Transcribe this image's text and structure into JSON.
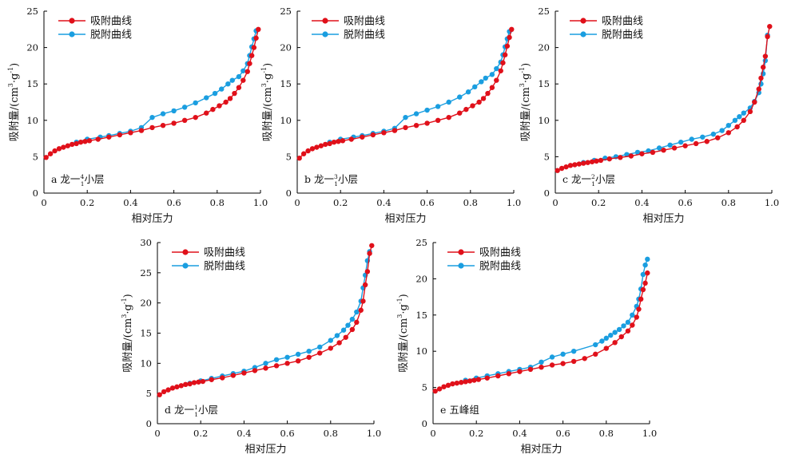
{
  "figure": {
    "colors": {
      "adsorption": "#e0101a",
      "desorption": "#1a9ee0",
      "axis": "#000000"
    }
  },
  "chart_data": [
    {
      "type": "line",
      "panel_label": "a 龙一1⁴小层",
      "panel_label_parts": {
        "prefix": "a 龙一",
        "sup": "4",
        "sub": "1",
        "suffix": "小层"
      },
      "xlabel": "相对压力",
      "ylabel": "吸附量/(cm³·g⁻¹)",
      "ylabel_parts": [
        "吸附量/(cm",
        "3",
        "·g",
        "-1",
        ")"
      ],
      "xlim": [
        0,
        1.0
      ],
      "ylim": [
        0,
        25
      ],
      "xticks": [
        0,
        0.2,
        0.4,
        0.6,
        0.8,
        1.0
      ],
      "xtick_labels": [
        "0",
        "0.2",
        "0.4",
        "0.6",
        "0.8",
        "1.0"
      ],
      "yticks": [
        0,
        5,
        10,
        15,
        20,
        25
      ],
      "ytick_labels": [
        "0",
        "5",
        "10",
        "15",
        "20",
        "25"
      ],
      "legend_position": "top-left",
      "series": [
        {
          "name": "吸附曲线",
          "color": "#e0101a",
          "marker": "circle",
          "x": [
            0.01,
            0.03,
            0.05,
            0.07,
            0.09,
            0.11,
            0.13,
            0.15,
            0.17,
            0.19,
            0.21,
            0.25,
            0.3,
            0.35,
            0.4,
            0.45,
            0.5,
            0.55,
            0.6,
            0.65,
            0.7,
            0.75,
            0.78,
            0.81,
            0.84,
            0.86,
            0.88,
            0.9,
            0.92,
            0.94,
            0.95,
            0.96,
            0.97,
            0.98,
            0.99
          ],
          "y": [
            4.9,
            5.4,
            5.8,
            6.1,
            6.3,
            6.5,
            6.7,
            6.8,
            7.0,
            7.1,
            7.2,
            7.4,
            7.7,
            8.0,
            8.3,
            8.6,
            9.0,
            9.3,
            9.6,
            10.0,
            10.4,
            11.0,
            11.5,
            12.0,
            12.5,
            13.0,
            13.7,
            14.5,
            15.5,
            16.7,
            17.8,
            18.9,
            20.0,
            21.3,
            22.5
          ]
        },
        {
          "name": "脱附曲线",
          "color": "#1a9ee0",
          "marker": "circle",
          "x": [
            0.15,
            0.2,
            0.26,
            0.3,
            0.35,
            0.4,
            0.45,
            0.5,
            0.55,
            0.6,
            0.65,
            0.7,
            0.75,
            0.79,
            0.82,
            0.85,
            0.87,
            0.9,
            0.92,
            0.94,
            0.95,
            0.96,
            0.97,
            0.98
          ],
          "y": [
            7.0,
            7.4,
            7.7,
            7.9,
            8.2,
            8.5,
            9.0,
            10.4,
            10.9,
            11.3,
            11.8,
            12.4,
            13.1,
            13.7,
            14.3,
            15.0,
            15.5,
            16.0,
            16.8,
            17.8,
            18.9,
            20.1,
            21.2,
            22.3
          ]
        }
      ]
    },
    {
      "type": "line",
      "panel_label": "b 龙一1³小层",
      "panel_label_parts": {
        "prefix": "b 龙一",
        "sup": "3",
        "sub": "1",
        "suffix": "小层"
      },
      "xlabel": "相对压力",
      "ylabel": "吸附量/(cm³·g⁻¹)",
      "ylabel_parts": [
        "吸附量/(cm",
        "3",
        "·g",
        "-1",
        ")"
      ],
      "xlim": [
        0,
        1.0
      ],
      "ylim": [
        0,
        25
      ],
      "xticks": [
        0,
        0.2,
        0.4,
        0.6,
        0.8,
        1.0
      ],
      "xtick_labels": [
        "0",
        "0.2",
        "0.4",
        "0.6",
        "0.8",
        "1.0"
      ],
      "yticks": [
        0,
        5,
        10,
        15,
        20,
        25
      ],
      "ytick_labels": [
        "0",
        "5",
        "10",
        "15",
        "20",
        "25"
      ],
      "legend_position": "top-left",
      "series": [
        {
          "name": "吸附曲线",
          "color": "#e0101a",
          "marker": "circle",
          "x": [
            0.01,
            0.03,
            0.05,
            0.07,
            0.09,
            0.11,
            0.13,
            0.15,
            0.17,
            0.19,
            0.21,
            0.25,
            0.3,
            0.35,
            0.4,
            0.45,
            0.5,
            0.55,
            0.6,
            0.65,
            0.7,
            0.75,
            0.78,
            0.81,
            0.84,
            0.86,
            0.88,
            0.9,
            0.92,
            0.94,
            0.95,
            0.96,
            0.97,
            0.98,
            0.99
          ],
          "y": [
            4.8,
            5.4,
            5.8,
            6.1,
            6.3,
            6.5,
            6.7,
            6.8,
            7.0,
            7.1,
            7.2,
            7.4,
            7.7,
            8.0,
            8.3,
            8.6,
            9.0,
            9.3,
            9.6,
            10.0,
            10.4,
            11.0,
            11.5,
            12.0,
            12.5,
            13.0,
            13.7,
            14.5,
            15.5,
            16.8,
            17.9,
            19.0,
            20.2,
            21.4,
            22.5
          ]
        },
        {
          "name": "脱附曲线",
          "color": "#1a9ee0",
          "marker": "circle",
          "x": [
            0.15,
            0.2,
            0.26,
            0.3,
            0.35,
            0.4,
            0.45,
            0.5,
            0.55,
            0.6,
            0.65,
            0.7,
            0.75,
            0.79,
            0.82,
            0.85,
            0.87,
            0.9,
            0.92,
            0.94,
            0.95,
            0.96,
            0.97,
            0.98
          ],
          "y": [
            7.0,
            7.4,
            7.7,
            7.9,
            8.2,
            8.5,
            8.9,
            10.4,
            10.9,
            11.4,
            11.9,
            12.5,
            13.2,
            13.9,
            14.6,
            15.3,
            15.8,
            16.3,
            17.1,
            18.0,
            19.0,
            20.1,
            21.2,
            22.2
          ]
        }
      ]
    },
    {
      "type": "line",
      "panel_label": "c 龙一1²小层",
      "panel_label_parts": {
        "prefix": "c 龙一",
        "sup": "2",
        "sub": "1",
        "suffix": "小层"
      },
      "xlabel": "相对压力",
      "ylabel": "吸附量/(cm³·g⁻¹)",
      "ylabel_parts": [
        "吸附量/(cm",
        "3",
        "·g",
        "-1",
        ")"
      ],
      "xlim": [
        0,
        1.0
      ],
      "ylim": [
        0,
        25
      ],
      "xticks": [
        0,
        0.2,
        0.4,
        0.6,
        0.8,
        1.0
      ],
      "xtick_labels": [
        "0",
        "0.2",
        "0.4",
        "0.6",
        "0.8",
        "1.0"
      ],
      "yticks": [
        0,
        5,
        10,
        15,
        20,
        25
      ],
      "ytick_labels": [
        "0",
        "5",
        "10",
        "15",
        "20",
        "25"
      ],
      "legend_position": "top-left",
      "series": [
        {
          "name": "吸附曲线",
          "color": "#e0101a",
          "marker": "circle",
          "x": [
            0.01,
            0.03,
            0.05,
            0.07,
            0.09,
            0.11,
            0.13,
            0.15,
            0.17,
            0.19,
            0.21,
            0.25,
            0.3,
            0.35,
            0.4,
            0.45,
            0.5,
            0.55,
            0.6,
            0.65,
            0.7,
            0.75,
            0.8,
            0.84,
            0.87,
            0.9,
            0.92,
            0.94,
            0.95,
            0.96,
            0.97,
            0.98,
            0.99
          ],
          "y": [
            3.1,
            3.4,
            3.6,
            3.8,
            3.9,
            4.0,
            4.1,
            4.2,
            4.3,
            4.4,
            4.5,
            4.7,
            4.9,
            5.1,
            5.4,
            5.6,
            5.9,
            6.2,
            6.5,
            6.8,
            7.1,
            7.6,
            8.3,
            9.1,
            10.0,
            11.2,
            12.5,
            14.3,
            15.8,
            17.3,
            18.8,
            21.5,
            22.9
          ]
        },
        {
          "name": "脱附曲线",
          "color": "#1a9ee0",
          "marker": "circle",
          "x": [
            0.13,
            0.18,
            0.23,
            0.28,
            0.33,
            0.38,
            0.43,
            0.48,
            0.53,
            0.58,
            0.63,
            0.68,
            0.73,
            0.77,
            0.8,
            0.83,
            0.85,
            0.87,
            0.9,
            0.92,
            0.94,
            0.95,
            0.96,
            0.97,
            0.98
          ],
          "y": [
            4.2,
            4.5,
            4.8,
            5.0,
            5.3,
            5.6,
            5.8,
            6.2,
            6.6,
            7.0,
            7.4,
            7.7,
            8.1,
            8.6,
            9.3,
            10.0,
            10.5,
            11.0,
            11.7,
            12.6,
            13.8,
            15.0,
            16.4,
            18.2,
            21.7
          ]
        }
      ]
    },
    {
      "type": "line",
      "panel_label": "d 龙一1¹小层",
      "panel_label_parts": {
        "prefix": "d 龙一",
        "sup": "1",
        "sub": "1",
        "suffix": "小层"
      },
      "xlabel": "相对压力",
      "ylabel": "吸附量/(cm³·g⁻¹)",
      "ylabel_parts": [
        "吸附量/(cm",
        "3",
        "·g",
        "-1",
        ")"
      ],
      "xlim": [
        0,
        1.0
      ],
      "ylim": [
        0,
        30
      ],
      "xticks": [
        0,
        0.2,
        0.4,
        0.6,
        0.8,
        1.0
      ],
      "xtick_labels": [
        "0",
        "0.2",
        "0.4",
        "0.6",
        "0.8",
        "1.0"
      ],
      "yticks": [
        0,
        5,
        10,
        15,
        20,
        25,
        30
      ],
      "ytick_labels": [
        "0",
        "5",
        "10",
        "15",
        "20",
        "25",
        "30"
      ],
      "legend_position": "top-left",
      "series": [
        {
          "name": "吸附曲线",
          "color": "#e0101a",
          "marker": "circle",
          "x": [
            0.01,
            0.03,
            0.05,
            0.07,
            0.09,
            0.11,
            0.13,
            0.15,
            0.17,
            0.19,
            0.21,
            0.25,
            0.3,
            0.35,
            0.4,
            0.45,
            0.5,
            0.55,
            0.6,
            0.65,
            0.7,
            0.75,
            0.8,
            0.84,
            0.87,
            0.9,
            0.92,
            0.94,
            0.95,
            0.96,
            0.97,
            0.98,
            0.99
          ],
          "y": [
            4.8,
            5.3,
            5.6,
            5.9,
            6.1,
            6.3,
            6.5,
            6.6,
            6.8,
            6.9,
            7.0,
            7.3,
            7.6,
            8.0,
            8.4,
            8.8,
            9.2,
            9.6,
            10.0,
            10.4,
            11.0,
            11.7,
            12.5,
            13.4,
            14.3,
            15.6,
            16.8,
            18.8,
            20.3,
            23.0,
            25.2,
            28.2,
            29.5
          ]
        },
        {
          "name": "脱附曲线",
          "color": "#1a9ee0",
          "marker": "circle",
          "x": [
            0.15,
            0.2,
            0.25,
            0.3,
            0.35,
            0.4,
            0.45,
            0.5,
            0.55,
            0.6,
            0.65,
            0.7,
            0.75,
            0.8,
            0.83,
            0.86,
            0.88,
            0.9,
            0.92,
            0.94,
            0.95,
            0.96,
            0.97,
            0.98
          ],
          "y": [
            6.7,
            7.1,
            7.5,
            7.9,
            8.3,
            8.7,
            9.3,
            10.0,
            10.6,
            11.0,
            11.5,
            12.0,
            12.7,
            13.8,
            14.6,
            15.5,
            16.3,
            17.3,
            18.5,
            20.3,
            22.5,
            24.6,
            27.0,
            28.5
          ]
        }
      ]
    },
    {
      "type": "line",
      "panel_label": "e 五峰组",
      "panel_label_parts": {
        "prefix": "e 五峰组",
        "sup": "",
        "sub": "",
        "suffix": ""
      },
      "xlabel": "相对压力",
      "ylabel": "吸附量/(cm³·g⁻¹)",
      "ylabel_parts": [
        "吸附量/(cm",
        "3",
        "·g",
        "-1",
        ")"
      ],
      "xlim": [
        0,
        1.0
      ],
      "ylim": [
        0,
        25
      ],
      "xticks": [
        0,
        0.2,
        0.4,
        0.6,
        0.8,
        1.0
      ],
      "xtick_labels": [
        "0",
        "0.2",
        "0.4",
        "0.6",
        "0.8",
        "1.0"
      ],
      "yticks": [
        0,
        5,
        10,
        15,
        20,
        25
      ],
      "ytick_labels": [
        "0",
        "5",
        "10",
        "15",
        "20",
        "25"
      ],
      "legend_position": "top-left",
      "series": [
        {
          "name": "吸附曲线",
          "color": "#e0101a",
          "marker": "circle",
          "x": [
            0.01,
            0.03,
            0.05,
            0.07,
            0.09,
            0.11,
            0.13,
            0.15,
            0.17,
            0.19,
            0.21,
            0.25,
            0.3,
            0.35,
            0.4,
            0.45,
            0.5,
            0.55,
            0.6,
            0.65,
            0.7,
            0.75,
            0.8,
            0.84,
            0.87,
            0.9,
            0.92,
            0.94,
            0.95,
            0.96,
            0.97,
            0.98,
            0.99
          ],
          "y": [
            4.5,
            4.8,
            5.1,
            5.3,
            5.5,
            5.6,
            5.7,
            5.8,
            5.9,
            6.0,
            6.1,
            6.3,
            6.6,
            6.9,
            7.2,
            7.5,
            7.8,
            8.1,
            8.3,
            8.6,
            9.0,
            9.6,
            10.4,
            11.2,
            12.0,
            12.8,
            13.6,
            14.7,
            15.8,
            17.2,
            18.5,
            19.4,
            20.8
          ]
        },
        {
          "name": "脱附曲线",
          "color": "#1a9ee0",
          "marker": "circle",
          "x": [
            0.15,
            0.2,
            0.25,
            0.3,
            0.35,
            0.4,
            0.45,
            0.5,
            0.55,
            0.6,
            0.65,
            0.75,
            0.78,
            0.8,
            0.82,
            0.84,
            0.86,
            0.88,
            0.9,
            0.92,
            0.94,
            0.95,
            0.96,
            0.97,
            0.98,
            0.99
          ],
          "y": [
            6.0,
            6.3,
            6.6,
            6.9,
            7.2,
            7.5,
            7.8,
            8.5,
            9.2,
            9.6,
            10.0,
            10.9,
            11.4,
            11.8,
            12.2,
            12.6,
            13.0,
            13.5,
            14.0,
            15.0,
            16.2,
            17.2,
            18.6,
            20.6,
            21.9,
            22.7
          ]
        }
      ]
    }
  ]
}
